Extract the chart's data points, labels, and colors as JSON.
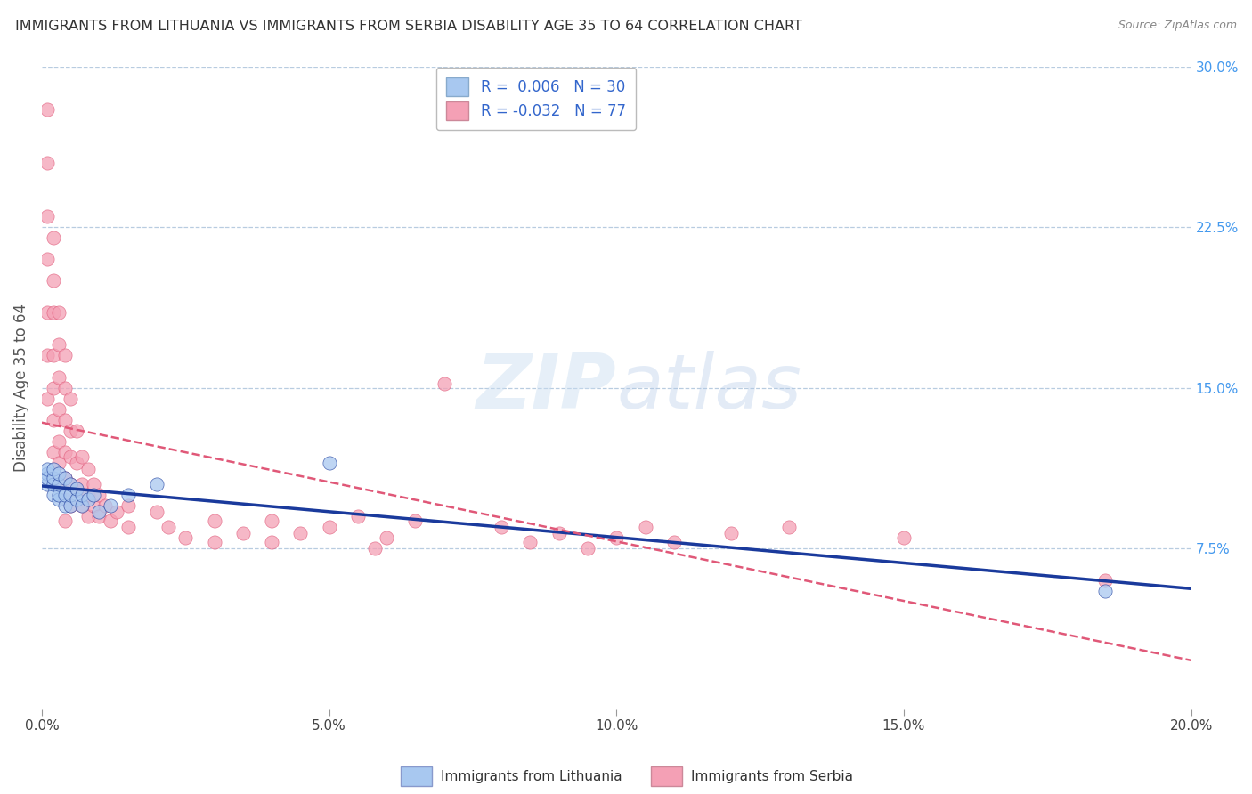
{
  "title": "IMMIGRANTS FROM LITHUANIA VS IMMIGRANTS FROM SERBIA DISABILITY AGE 35 TO 64 CORRELATION CHART",
  "source": "Source: ZipAtlas.com",
  "ylabel": "Disability Age 35 to 64",
  "xlim": [
    0.0,
    0.2
  ],
  "ylim": [
    0.0,
    0.3
  ],
  "xticks": [
    0.0,
    0.05,
    0.1,
    0.15,
    0.2
  ],
  "xticklabels": [
    "0.0%",
    "5.0%",
    "10.0%",
    "15.0%",
    "20.0%"
  ],
  "yticks_right": [
    0.075,
    0.15,
    0.225,
    0.3
  ],
  "yticklabels_right": [
    "7.5%",
    "15.0%",
    "22.5%",
    "30.0%"
  ],
  "legend_r1": "R =  0.006",
  "legend_n1": "N = 30",
  "legend_r2": "R = -0.032",
  "legend_n2": "N = 77",
  "color_lithuania": "#a8c8f0",
  "color_serbia": "#f4a0b5",
  "trendline_color_lithuania": "#1a3a9c",
  "trendline_color_serbia": "#e05878",
  "watermark": "ZIPatlas",
  "background_color": "#ffffff",
  "grid_color": "#b8cce0",
  "lithuania_x": [
    0.001,
    0.001,
    0.001,
    0.001,
    0.002,
    0.002,
    0.002,
    0.002,
    0.003,
    0.003,
    0.003,
    0.003,
    0.004,
    0.004,
    0.004,
    0.005,
    0.005,
    0.005,
    0.006,
    0.006,
    0.007,
    0.007,
    0.008,
    0.009,
    0.01,
    0.012,
    0.015,
    0.02,
    0.05,
    0.185
  ],
  "lithuania_y": [
    0.105,
    0.11,
    0.108,
    0.112,
    0.1,
    0.105,
    0.108,
    0.112,
    0.098,
    0.1,
    0.105,
    0.11,
    0.095,
    0.1,
    0.108,
    0.095,
    0.1,
    0.105,
    0.098,
    0.103,
    0.095,
    0.1,
    0.098,
    0.1,
    0.092,
    0.095,
    0.1,
    0.105,
    0.115,
    0.055
  ],
  "serbia_x": [
    0.001,
    0.001,
    0.001,
    0.001,
    0.001,
    0.001,
    0.001,
    0.002,
    0.002,
    0.002,
    0.002,
    0.002,
    0.002,
    0.002,
    0.003,
    0.003,
    0.003,
    0.003,
    0.003,
    0.003,
    0.003,
    0.004,
    0.004,
    0.004,
    0.004,
    0.004,
    0.004,
    0.004,
    0.005,
    0.005,
    0.005,
    0.005,
    0.005,
    0.006,
    0.006,
    0.006,
    0.007,
    0.007,
    0.007,
    0.008,
    0.008,
    0.008,
    0.009,
    0.009,
    0.01,
    0.01,
    0.011,
    0.012,
    0.013,
    0.015,
    0.015,
    0.02,
    0.022,
    0.025,
    0.03,
    0.03,
    0.035,
    0.04,
    0.04,
    0.045,
    0.05,
    0.055,
    0.058,
    0.06,
    0.065,
    0.07,
    0.08,
    0.085,
    0.09,
    0.095,
    0.1,
    0.105,
    0.11,
    0.12,
    0.13,
    0.15,
    0.185
  ],
  "serbia_y": [
    0.28,
    0.255,
    0.23,
    0.21,
    0.185,
    0.165,
    0.145,
    0.22,
    0.2,
    0.185,
    0.165,
    0.15,
    0.135,
    0.12,
    0.185,
    0.17,
    0.155,
    0.14,
    0.125,
    0.115,
    0.105,
    0.165,
    0.15,
    0.135,
    0.12,
    0.108,
    0.098,
    0.088,
    0.145,
    0.13,
    0.118,
    0.105,
    0.095,
    0.13,
    0.115,
    0.102,
    0.118,
    0.105,
    0.095,
    0.112,
    0.1,
    0.09,
    0.105,
    0.095,
    0.1,
    0.09,
    0.095,
    0.088,
    0.092,
    0.095,
    0.085,
    0.092,
    0.085,
    0.08,
    0.088,
    0.078,
    0.082,
    0.088,
    0.078,
    0.082,
    0.085,
    0.09,
    0.075,
    0.08,
    0.088,
    0.152,
    0.085,
    0.078,
    0.082,
    0.075,
    0.08,
    0.085,
    0.078,
    0.082,
    0.085,
    0.08,
    0.06
  ]
}
